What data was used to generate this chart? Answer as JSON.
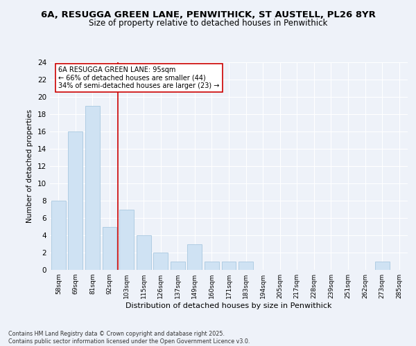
{
  "title_line1": "6A, RESUGGA GREEN LANE, PENWITHICK, ST AUSTELL, PL26 8YR",
  "title_line2": "Size of property relative to detached houses in Penwithick",
  "xlabel": "Distribution of detached houses by size in Penwithick",
  "ylabel": "Number of detached properties",
  "categories": [
    "58sqm",
    "69sqm",
    "81sqm",
    "92sqm",
    "103sqm",
    "115sqm",
    "126sqm",
    "137sqm",
    "149sqm",
    "160sqm",
    "171sqm",
    "183sqm",
    "194sqm",
    "205sqm",
    "217sqm",
    "228sqm",
    "239sqm",
    "251sqm",
    "262sqm",
    "273sqm",
    "285sqm"
  ],
  "values": [
    8,
    16,
    19,
    5,
    7,
    4,
    2,
    1,
    3,
    1,
    1,
    1,
    0,
    0,
    0,
    0,
    0,
    0,
    0,
    1,
    0
  ],
  "bar_color": "#cfe2f3",
  "bar_edge_color": "#a8c8e0",
  "vline_x": 3.5,
  "vline_color": "#cc0000",
  "annotation_title": "6A RESUGGA GREEN LANE: 95sqm",
  "annotation_line2": "← 66% of detached houses are smaller (44)",
  "annotation_line3": "34% of semi-detached houses are larger (23) →",
  "annotation_box_color": "#ffffff",
  "annotation_box_edge": "#cc0000",
  "ylim": [
    0,
    24
  ],
  "yticks": [
    0,
    2,
    4,
    6,
    8,
    10,
    12,
    14,
    16,
    18,
    20,
    22,
    24
  ],
  "footer_line1": "Contains HM Land Registry data © Crown copyright and database right 2025.",
  "footer_line2": "Contains public sector information licensed under the Open Government Licence v3.0.",
  "bg_color": "#eef2f9",
  "grid_color": "#ffffff",
  "title_fontsize": 9.5,
  "subtitle_fontsize": 8.5
}
